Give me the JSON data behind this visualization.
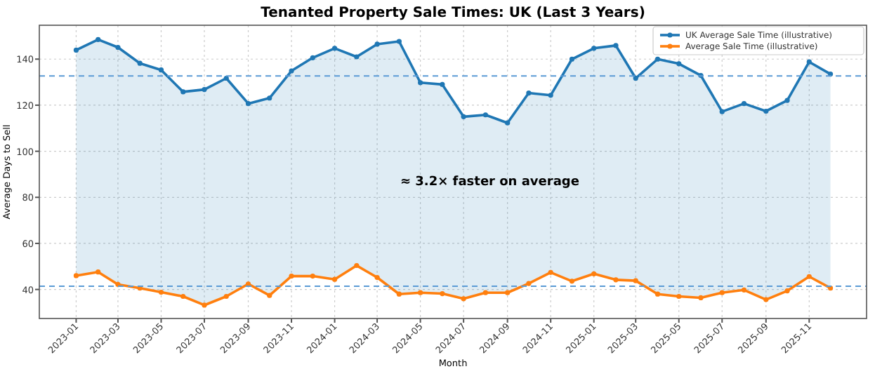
{
  "chart_data": {
    "type": "line",
    "title": "Tenanted Property Sale Times: UK (Last 3 Years)",
    "xlabel": "Month",
    "ylabel": "Average Days to Sell",
    "x": [
      "2023-01",
      "2023-02",
      "2023-03",
      "2023-04",
      "2023-05",
      "2023-06",
      "2023-07",
      "2023-08",
      "2023-09",
      "2023-10",
      "2023-11",
      "2023-12",
      "2024-01",
      "2024-02",
      "2024-03",
      "2024-04",
      "2024-05",
      "2024-06",
      "2024-07",
      "2024-08",
      "2024-09",
      "2024-10",
      "2024-11",
      "2024-12",
      "2025-01",
      "2025-02",
      "2025-03",
      "2025-04",
      "2025-05",
      "2025-06",
      "2025-07",
      "2025-08",
      "2025-09",
      "2025-10",
      "2025-11",
      "2025-12"
    ],
    "series": [
      {
        "name": "UK Average Sale Time (illustrative)",
        "type": "area",
        "color": "#1f77b4",
        "values": [
          143.9,
          148.5,
          145.1,
          138.2,
          135.3,
          125.8,
          126.8,
          131.7,
          120.7,
          123.1,
          134.9,
          140.6,
          144.7,
          141,
          146.5,
          147.7,
          129.8,
          129,
          115,
          115.8,
          112.3,
          125.3,
          124.3,
          140,
          144.7,
          145.9,
          131.7,
          140,
          138,
          132.9,
          117.2,
          120.7,
          117.4,
          122.1,
          138.8,
          133.5
        ]
      },
      {
        "name": "Average Sale Time (illustrative)",
        "color": "#ff7f0e",
        "values": [
          46,
          47.6,
          42.2,
          40.6,
          38.8,
          37,
          33.2,
          37,
          42.4,
          37.4,
          45.8,
          45.8,
          44.4,
          50.4,
          45.2,
          38,
          38.6,
          38.2,
          36,
          38.6,
          38.6,
          42.6,
          47.4,
          43.6,
          46.8,
          44.2,
          43.8,
          38,
          37,
          36.4,
          38.6,
          39.8,
          35.6,
          39.4,
          45.6,
          40.6
        ]
      }
    ],
    "ref_lines": [
      {
        "axis": "y",
        "value": 132.7,
        "color": "#5b9bd5",
        "line_style": "dashed"
      },
      {
        "axis": "y",
        "value": 41.4,
        "color": "#5b9bd5",
        "line_style": "dashed"
      }
    ],
    "annotations": [
      "≈ 3.2× faster on average"
    ],
    "xlim": [
      "2022-11-10",
      "2026-01-21"
    ],
    "xticks": [
      {
        "value": "2023-01",
        "label": "2023-01"
      },
      {
        "value": "2023-03",
        "label": "2023-03"
      },
      {
        "value": "2023-05",
        "label": "2023-05"
      },
      {
        "value": "2023-07",
        "label": "2023-07"
      },
      {
        "value": "2023-09",
        "label": "2023-09"
      },
      {
        "value": "2023-11",
        "label": "2023-11"
      },
      {
        "value": "2024-01",
        "label": "2024-01"
      },
      {
        "value": "2024-03",
        "label": "2024-03"
      },
      {
        "value": "2024-05",
        "label": "2024-05"
      },
      {
        "value": "2024-07",
        "label": "2024-07"
      },
      {
        "value": "2024-09",
        "label": "2024-09"
      },
      {
        "value": "2024-11",
        "label": "2024-11"
      },
      {
        "value": "2025-01",
        "label": "2025-01"
      },
      {
        "value": "2025-03",
        "label": "2025-03"
      },
      {
        "value": "2025-05",
        "label": "2025-05"
      },
      {
        "value": "2025-07",
        "label": "2025-07"
      },
      {
        "value": "2025-09",
        "label": "2025-09"
      },
      {
        "value": "2025-11",
        "label": "2025-11"
      }
    ],
    "ylim": [
      27.4,
      154.7
    ],
    "yticks": [
      40,
      60,
      80,
      100,
      120,
      140
    ],
    "grid": true,
    "legend": "top right",
    "marker": "circle",
    "line_style": "solid"
  }
}
